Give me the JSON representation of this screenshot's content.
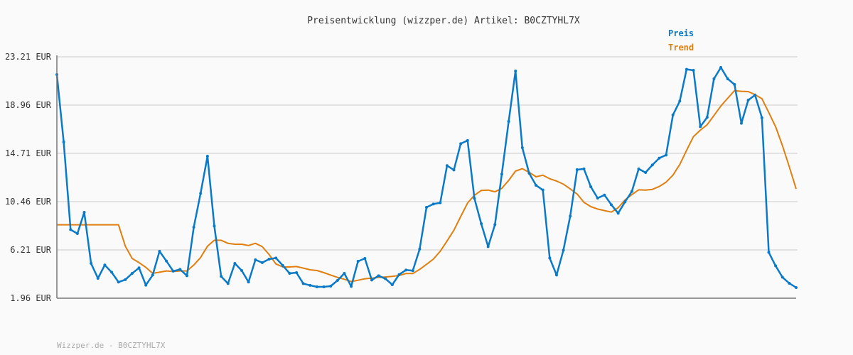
{
  "chart_data": {
    "type": "line",
    "title": "Preisentwicklung (wizzper.de) Artikel: B0CZTYHL7X",
    "xlabel": "",
    "ylabel": "",
    "ylim": [
      1.96,
      23.21
    ],
    "yticks": [
      "1.96 EUR",
      "6.21 EUR",
      "10.46 EUR",
      "14.71 EUR",
      "18.96 EUR",
      "23.21 EUR"
    ],
    "ytick_values": [
      1.96,
      6.21,
      10.46,
      14.71,
      18.96,
      23.21
    ],
    "grid": true,
    "legend_placement": "top-right",
    "series": [
      {
        "name": "Preis",
        "color": "#0a7ac8",
        "markers": true,
        "values": [
          21.65,
          15.71,
          8.0,
          7.65,
          9.52,
          5.02,
          3.71,
          4.88,
          4.25,
          3.38,
          3.59,
          4.15,
          4.63,
          3.11,
          4.0,
          6.09,
          5.23,
          4.34,
          4.5,
          3.94,
          8.21,
          11.19,
          14.46,
          8.31,
          3.88,
          3.25,
          5.02,
          4.4,
          3.38,
          5.34,
          5.09,
          5.4,
          5.5,
          4.84,
          4.15,
          4.21,
          3.25,
          3.09,
          2.96,
          2.96,
          3.02,
          3.52,
          4.15,
          3.0,
          5.21,
          5.46,
          3.56,
          3.94,
          3.67,
          3.15,
          4.04,
          4.44,
          4.38,
          6.29,
          9.96,
          10.25,
          10.36,
          13.63,
          13.25,
          15.56,
          15.84,
          10.75,
          8.52,
          6.5,
          8.44,
          12.88,
          17.52,
          21.96,
          15.21,
          12.96,
          11.9,
          11.48,
          5.5,
          4.0,
          6.19,
          9.19,
          13.27,
          13.34,
          11.77,
          10.77,
          11.04,
          10.19,
          9.44,
          10.44,
          11.36,
          13.34,
          13.02,
          13.69,
          14.29,
          14.56,
          18.09,
          19.31,
          22.11,
          22.02,
          17.06,
          17.88,
          21.27,
          22.27,
          21.27,
          20.77,
          17.36,
          19.4,
          19.84,
          17.84,
          6.0,
          4.81,
          3.81,
          3.27,
          2.9
        ]
      },
      {
        "name": "Trend",
        "color": "#e07f10",
        "markers": false,
        "values": [
          8.42,
          8.42,
          8.42,
          8.42,
          8.42,
          8.42,
          8.42,
          8.42,
          8.42,
          8.42,
          6.54,
          5.46,
          5.09,
          4.67,
          4.15,
          4.25,
          4.36,
          4.31,
          4.36,
          4.36,
          4.88,
          5.54,
          6.54,
          7.06,
          7.06,
          6.79,
          6.71,
          6.71,
          6.6,
          6.79,
          6.5,
          5.81,
          4.98,
          4.71,
          4.71,
          4.75,
          4.61,
          4.46,
          4.4,
          4.21,
          4.0,
          3.79,
          3.63,
          3.42,
          3.54,
          3.67,
          3.73,
          3.79,
          3.83,
          3.88,
          3.96,
          4.13,
          4.13,
          4.5,
          4.94,
          5.4,
          6.09,
          7.0,
          7.94,
          9.15,
          10.34,
          11.02,
          11.44,
          11.48,
          11.33,
          11.63,
          12.33,
          13.15,
          13.36,
          13.04,
          12.65,
          12.79,
          12.48,
          12.27,
          12.0,
          11.58,
          11.13,
          10.4,
          10.02,
          9.81,
          9.67,
          9.54,
          9.92,
          10.61,
          11.08,
          11.5,
          11.48,
          11.54,
          11.79,
          12.17,
          12.79,
          13.73,
          14.98,
          16.19,
          16.75,
          17.23,
          18.04,
          18.88,
          19.56,
          20.23,
          20.17,
          20.15,
          19.88,
          19.52,
          18.31,
          17.06,
          15.4,
          13.52,
          11.58
        ]
      }
    ]
  },
  "footer": "Wizzper.de - B0CZTYHL7X"
}
